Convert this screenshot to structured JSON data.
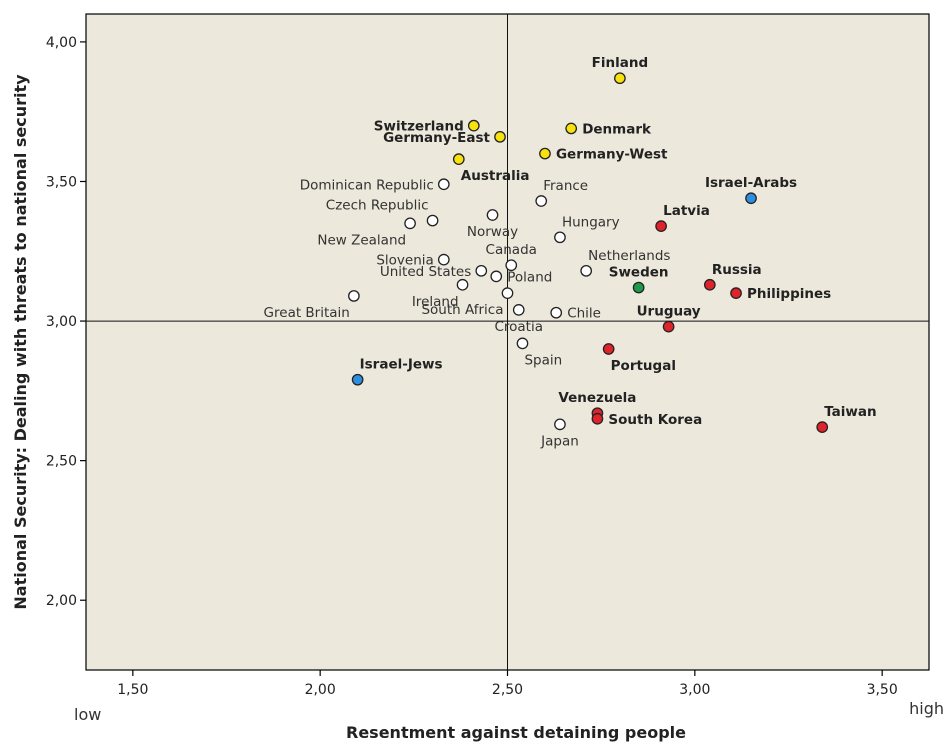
{
  "chart_data": {
    "type": "scatter",
    "title": "",
    "xlabel": "Resentment against detaining people",
    "ylabel": "National Security: Dealing with threats to national security",
    "x_low_label": "low",
    "x_high_label": "high",
    "xlim": [
      1.375,
      3.625
    ],
    "ylim": [
      1.75,
      4.1
    ],
    "x_ticks": [
      1.5,
      2.0,
      2.5,
      3.0,
      3.5
    ],
    "x_tick_labels": [
      "1,50",
      "2,00",
      "2,50",
      "3,00",
      "3,50"
    ],
    "y_ticks": [
      2.0,
      2.5,
      3.0,
      3.5,
      4.0
    ],
    "y_tick_labels": [
      "2,00",
      "2,50",
      "3,00",
      "3,50",
      "4,00"
    ],
    "reference_lines": {
      "x": 2.5,
      "y": 3.0
    },
    "grid": false,
    "colors": {
      "plot_bg": "#ede8dc",
      "none": "#ffffff",
      "yellow": "#f7e20f",
      "red": "#e0232b",
      "blue": "#2e8fe0",
      "green": "#1f9a4a"
    },
    "points": [
      {
        "name": "Finland",
        "x": 2.8,
        "y": 3.87,
        "color": "yellow",
        "bold": true,
        "label_pos": "above"
      },
      {
        "name": "Switzerland",
        "x": 2.41,
        "y": 3.7,
        "color": "yellow",
        "bold": true,
        "label_pos": "left"
      },
      {
        "name": "Denmark",
        "x": 2.67,
        "y": 3.69,
        "color": "yellow",
        "bold": true,
        "label_pos": "right"
      },
      {
        "name": "Germany-East",
        "x": 2.48,
        "y": 3.66,
        "color": "yellow",
        "bold": true,
        "label_pos": "left"
      },
      {
        "name": "Germany-West",
        "x": 2.6,
        "y": 3.6,
        "color": "yellow",
        "bold": true,
        "label_pos": "right"
      },
      {
        "name": "Australia",
        "x": 2.37,
        "y": 3.58,
        "color": "yellow",
        "bold": true,
        "label_pos": "below-right"
      },
      {
        "name": "Dominican Republic",
        "x": 2.33,
        "y": 3.49,
        "color": "none",
        "bold": false,
        "label_pos": "left"
      },
      {
        "name": "France",
        "x": 2.59,
        "y": 3.43,
        "color": "none",
        "bold": false,
        "label_pos": "above-right"
      },
      {
        "name": "Israel-Arabs",
        "x": 3.15,
        "y": 3.44,
        "color": "blue",
        "bold": true,
        "label_pos": "above"
      },
      {
        "name": "Czech Republic",
        "x": 2.3,
        "y": 3.36,
        "color": "none",
        "bold": false,
        "label_pos": "above-left"
      },
      {
        "name": "Norway",
        "x": 2.46,
        "y": 3.38,
        "color": "none",
        "bold": false,
        "label_pos": "below"
      },
      {
        "name": "Latvia",
        "x": 2.91,
        "y": 3.34,
        "color": "red",
        "bold": true,
        "label_pos": "above-right"
      },
      {
        "name": "New Zealand",
        "x": 2.24,
        "y": 3.35,
        "color": "none",
        "bold": false,
        "label_pos": "below-left"
      },
      {
        "name": "Hungary",
        "x": 2.64,
        "y": 3.3,
        "color": "none",
        "bold": false,
        "label_pos": "above-right"
      },
      {
        "name": "Slovenia",
        "x": 2.33,
        "y": 3.22,
        "color": "none",
        "bold": false,
        "label_pos": "left"
      },
      {
        "name": "Canada",
        "x": 2.51,
        "y": 3.2,
        "color": "none",
        "bold": false,
        "label_pos": "above"
      },
      {
        "name": "Netherlands",
        "x": 2.71,
        "y": 3.18,
        "color": "none",
        "bold": false,
        "label_pos": "above-right"
      },
      {
        "name": "United States",
        "x": 2.43,
        "y": 3.18,
        "color": "none",
        "bold": false,
        "label_pos": "left"
      },
      {
        "name": "Poland",
        "x": 2.47,
        "y": 3.16,
        "color": "none",
        "bold": false,
        "label_pos": "right"
      },
      {
        "name": "Russia",
        "x": 3.04,
        "y": 3.13,
        "color": "red",
        "bold": true,
        "label_pos": "above-right"
      },
      {
        "name": "Sweden",
        "x": 2.85,
        "y": 3.12,
        "color": "green",
        "bold": true,
        "label_pos": "above"
      },
      {
        "name": "Ireland",
        "x": 2.38,
        "y": 3.13,
        "color": "none",
        "bold": false,
        "label_pos": "below-left"
      },
      {
        "name": "Philippines",
        "x": 3.11,
        "y": 3.1,
        "color": "red",
        "bold": true,
        "label_pos": "right"
      },
      {
        "name": "Great Britain",
        "x": 2.09,
        "y": 3.09,
        "color": "none",
        "bold": false,
        "label_pos": "below-left"
      },
      {
        "name": "South Africa",
        "x": 2.5,
        "y": 3.1,
        "color": "none",
        "bold": false,
        "label_pos": "below-left"
      },
      {
        "name": "Chile",
        "x": 2.63,
        "y": 3.03,
        "color": "none",
        "bold": false,
        "label_pos": "right"
      },
      {
        "name": "Croatia",
        "x": 2.53,
        "y": 3.04,
        "color": "none",
        "bold": false,
        "label_pos": "below"
      },
      {
        "name": "Uruguay",
        "x": 2.93,
        "y": 2.98,
        "color": "red",
        "bold": true,
        "label_pos": "above"
      },
      {
        "name": "Spain",
        "x": 2.54,
        "y": 2.92,
        "color": "none",
        "bold": false,
        "label_pos": "below-right"
      },
      {
        "name": "Portugal",
        "x": 2.77,
        "y": 2.9,
        "color": "red",
        "bold": true,
        "label_pos": "below-right"
      },
      {
        "name": "Israel-Jews",
        "x": 2.1,
        "y": 2.79,
        "color": "blue",
        "bold": true,
        "label_pos": "above-right"
      },
      {
        "name": "Venezuela",
        "x": 2.74,
        "y": 2.67,
        "color": "red",
        "bold": true,
        "label_pos": "above"
      },
      {
        "name": "South Korea",
        "x": 2.74,
        "y": 2.65,
        "color": "red",
        "bold": true,
        "label_pos": "right"
      },
      {
        "name": "Japan",
        "x": 2.64,
        "y": 2.63,
        "color": "none",
        "bold": false,
        "label_pos": "below"
      },
      {
        "name": "Taiwan",
        "x": 3.34,
        "y": 2.62,
        "color": "red",
        "bold": true,
        "label_pos": "above-right"
      }
    ]
  }
}
